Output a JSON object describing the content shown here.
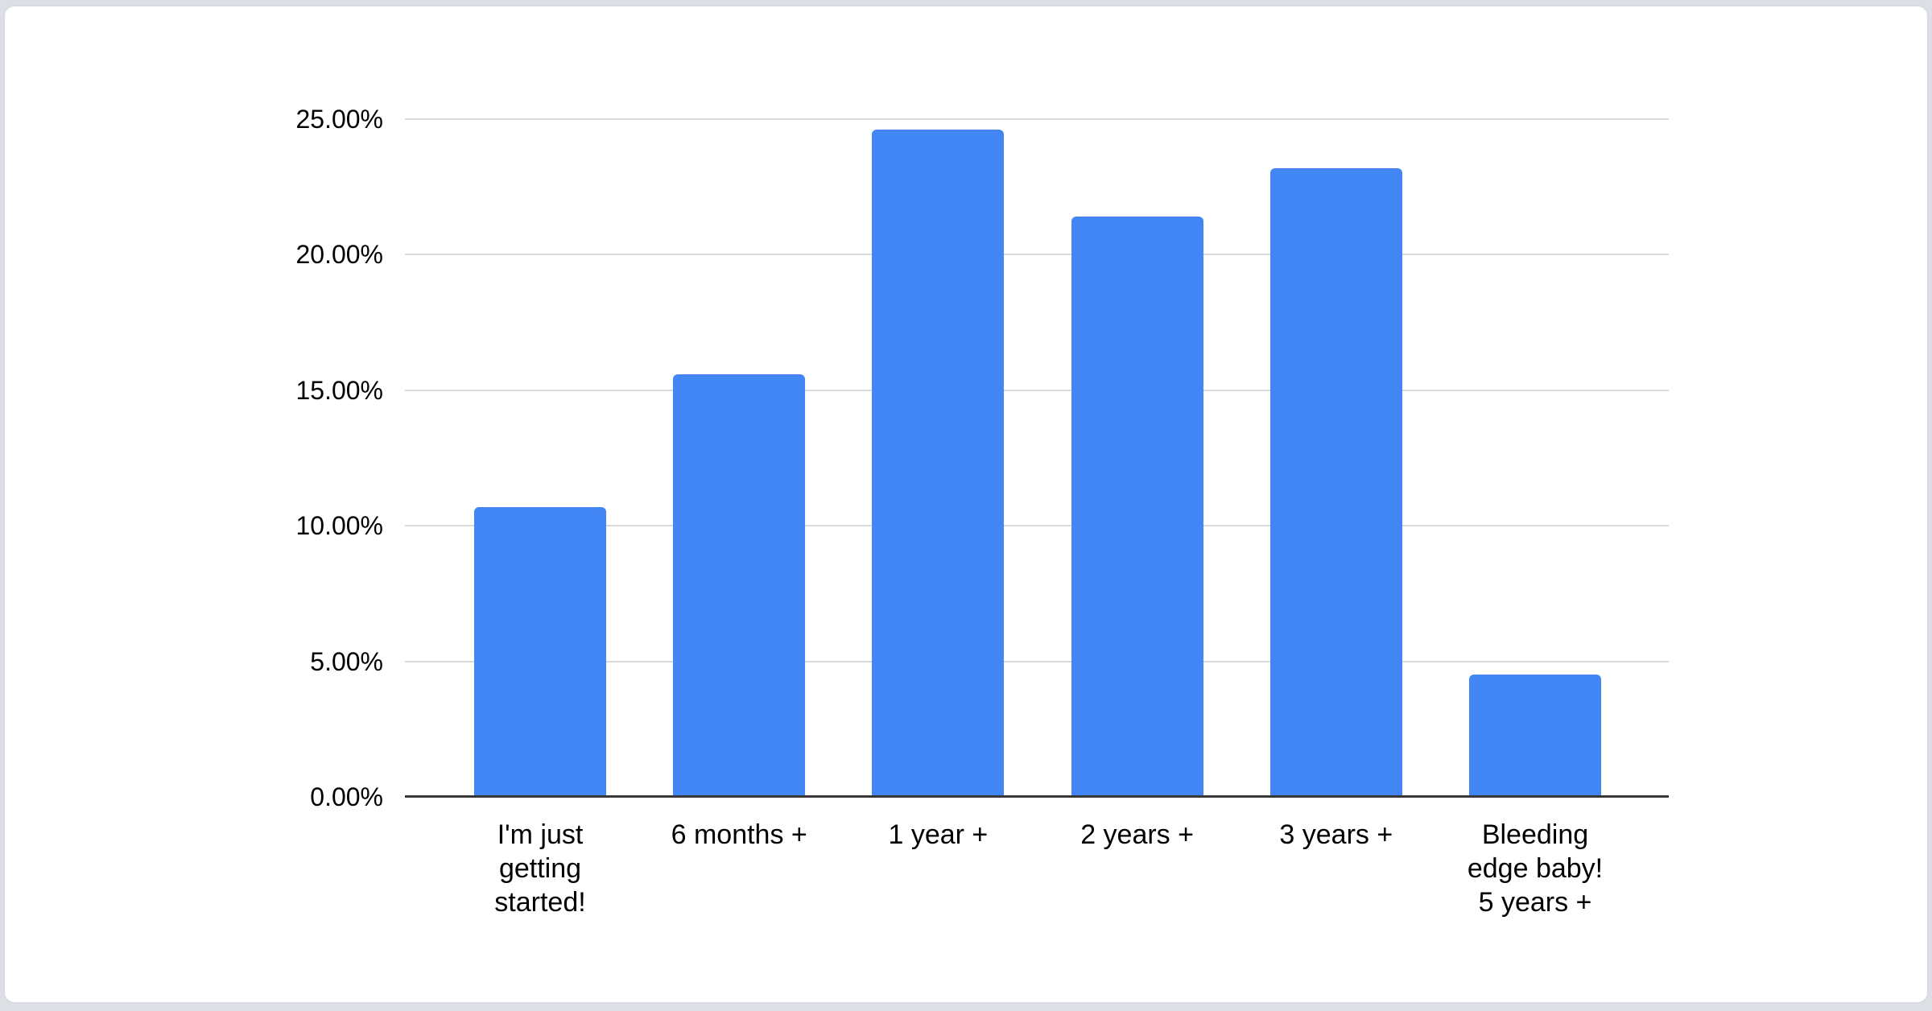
{
  "chart_data": {
    "type": "bar",
    "title": "",
    "xlabel": "",
    "ylabel": "",
    "categories": [
      "I'm just getting started!",
      "6 months +",
      "1 year +",
      "2 years +",
      "3 years +",
      "Bleeding edge baby! 5 years +"
    ],
    "category_lines": [
      [
        "I'm just",
        "getting",
        "started!"
      ],
      [
        "6 months +"
      ],
      [
        "1 year +"
      ],
      [
        "2 years +"
      ],
      [
        "3 years +"
      ],
      [
        "Bleeding",
        "edge baby!",
        "5 years +"
      ]
    ],
    "values": [
      10.7,
      15.6,
      24.6,
      21.4,
      23.2,
      4.5
    ],
    "value_unit": "%",
    "ylim": [
      0,
      25
    ],
    "y_tick_step": 5,
    "y_ticks": [
      {
        "value": 25,
        "label": "25.00%"
      },
      {
        "value": 20,
        "label": "20.00%"
      },
      {
        "value": 15,
        "label": "15.00%"
      },
      {
        "value": 10,
        "label": "10.00%"
      },
      {
        "value": 5,
        "label": "5.00%"
      },
      {
        "value": 0,
        "label": "0.00%"
      }
    ],
    "grid": true,
    "legend": "none",
    "colors": {
      "bar": "#4285f4",
      "gridline": "#d9d9d9",
      "baseline": "#383838",
      "text": "#000000",
      "card_background": "#ffffff",
      "page_background": "#dce0e5"
    }
  }
}
